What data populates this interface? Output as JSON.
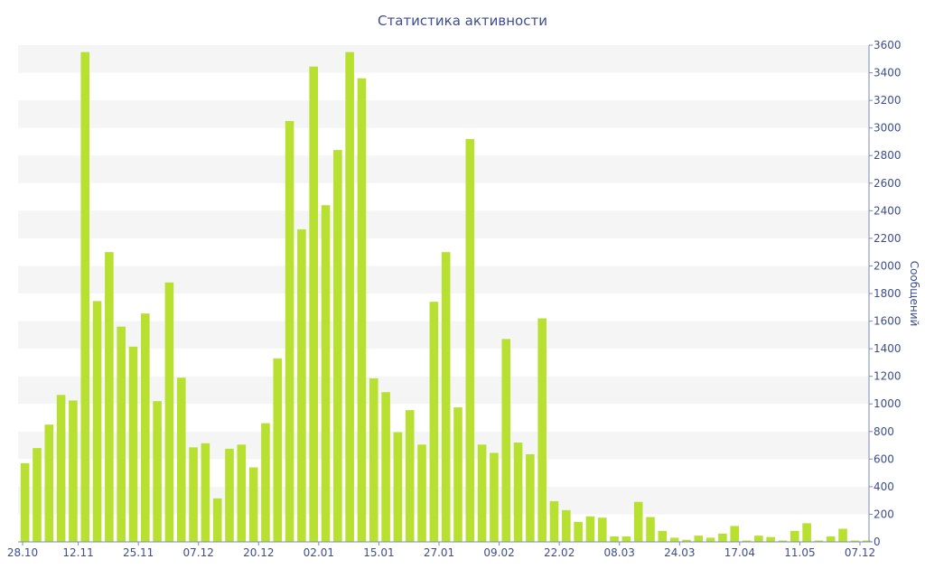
{
  "chart_data": {
    "type": "bar",
    "title": "Статистика активности",
    "xlabel": "",
    "ylabel": "Сообщений",
    "ylim": [
      0,
      3600
    ],
    "y_ticks": [
      0,
      200,
      400,
      600,
      800,
      1000,
      1200,
      1400,
      1600,
      1800,
      2000,
      2200,
      2400,
      2600,
      2800,
      3000,
      3200,
      3400,
      3600
    ],
    "y_axis_side": "right",
    "grid": "alternating horizontal bands",
    "bar_color": "#b7e030",
    "band_color": "#f5f5f5",
    "text_color": "#3d4d8f",
    "x_tick_labels": [
      {
        "index": 0,
        "label": "28.10"
      },
      {
        "index": 5,
        "label": "12.11"
      },
      {
        "index": 10,
        "label": "25.11"
      },
      {
        "index": 15,
        "label": "07.12"
      },
      {
        "index": 20,
        "label": "20.12"
      },
      {
        "index": 25,
        "label": "02.01"
      },
      {
        "index": 30,
        "label": "15.01"
      },
      {
        "index": 35,
        "label": "27.01"
      },
      {
        "index": 40,
        "label": "09.02"
      },
      {
        "index": 45,
        "label": "22.02"
      },
      {
        "index": 50,
        "label": "08.03"
      },
      {
        "index": 55,
        "label": "24.03"
      },
      {
        "index": 60,
        "label": "17.04"
      },
      {
        "index": 65,
        "label": "11.05"
      },
      {
        "index": 70,
        "label": "07.12"
      }
    ],
    "values": [
      570,
      680,
      850,
      1065,
      1025,
      3550,
      1745,
      2100,
      1560,
      1415,
      1655,
      1020,
      1880,
      1190,
      685,
      715,
      315,
      675,
      705,
      540,
      860,
      1330,
      3050,
      2265,
      3445,
      2440,
      2840,
      3550,
      3360,
      1185,
      1085,
      795,
      955,
      705,
      1740,
      2100,
      975,
      2920,
      705,
      645,
      1470,
      720,
      635,
      1620,
      295,
      230,
      145,
      185,
      175,
      40,
      40,
      290,
      180,
      80,
      30,
      15,
      45,
      30,
      60,
      115,
      10,
      45,
      35,
      10,
      80,
      135,
      10,
      40,
      95,
      10,
      10
    ]
  }
}
